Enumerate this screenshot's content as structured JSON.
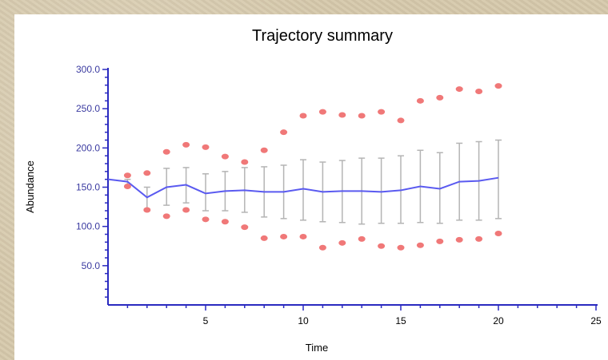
{
  "chart_data": {
    "type": "line",
    "title": "Trajectory summary",
    "xlabel": "Time",
    "ylabel": "Abundance",
    "xlim": [
      0,
      25
    ],
    "ylim": [
      0,
      300
    ],
    "xticks": [
      5,
      10,
      15,
      20,
      25
    ],
    "yticks": [
      50,
      100,
      150,
      200,
      250,
      300
    ],
    "xtick_labels": [
      "5",
      "10",
      "15",
      "20",
      "25"
    ],
    "ytick_labels": [
      "50.0",
      "100.0",
      "150.0",
      "200.0",
      "250.0",
      "300.0"
    ],
    "grid": false,
    "legend": "none",
    "colors": {
      "mean": "#5a5af0",
      "extremes": "#f07878",
      "errorbars": "#b4b4b4",
      "axes": "#2a2ac0"
    },
    "mean": {
      "x": [
        0,
        1,
        2,
        3,
        4,
        5,
        6,
        7,
        8,
        9,
        10,
        11,
        12,
        13,
        14,
        15,
        16,
        17,
        18,
        19,
        20
      ],
      "y": [
        160,
        157,
        137,
        150,
        153,
        142,
        145,
        146,
        144,
        144,
        148,
        144,
        145,
        145,
        144,
        146,
        151,
        148,
        157,
        158,
        162
      ]
    },
    "error_bars": {
      "x": [
        1,
        2,
        3,
        4,
        5,
        6,
        7,
        8,
        9,
        10,
        11,
        12,
        13,
        14,
        15,
        16,
        17,
        18,
        19,
        20
      ],
      "lower": [
        150,
        122,
        127,
        130,
        120,
        120,
        118,
        112,
        110,
        108,
        106,
        105,
        103,
        104,
        104,
        105,
        104,
        108,
        108,
        110
      ],
      "upper": [
        160,
        150,
        174,
        175,
        167,
        170,
        175,
        176,
        178,
        185,
        182,
        184,
        187,
        187,
        190,
        197,
        194,
        206,
        208,
        210
      ]
    },
    "max_points": {
      "x": [
        1,
        2,
        3,
        4,
        5,
        6,
        7,
        8,
        9,
        10,
        11,
        12,
        13,
        14,
        15,
        16,
        17,
        18,
        19,
        20
      ],
      "y": [
        165,
        168,
        195,
        204,
        201,
        189,
        182,
        197,
        220,
        241,
        246,
        242,
        241,
        246,
        235,
        260,
        264,
        275,
        272,
        279
      ]
    },
    "min_points": {
      "x": [
        1,
        2,
        3,
        4,
        5,
        6,
        7,
        8,
        9,
        10,
        11,
        12,
        13,
        14,
        15,
        16,
        17,
        18,
        19,
        20
      ],
      "y": [
        151,
        121,
        113,
        121,
        109,
        106,
        99,
        85,
        87,
        87,
        73,
        79,
        84,
        75,
        73,
        76,
        81,
        83,
        84,
        91
      ]
    }
  }
}
